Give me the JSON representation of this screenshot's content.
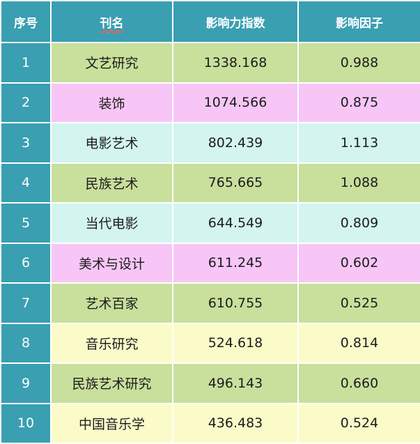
{
  "headers": {
    "index": "序号",
    "name": "刊名",
    "impact_index": "影响力指数",
    "impact_factor": "影响因子"
  },
  "colors": {
    "header_bg": "#3a9fb1",
    "green": "#c9df9c",
    "pink": "#f7c6f7",
    "mint": "#d3f4ef",
    "yellow": "#fbfbc9"
  },
  "rows": [
    {
      "index": "1",
      "name": "文艺研究",
      "impact_index": "1338.168",
      "impact_factor": "0.988",
      "color": "#c9df9c"
    },
    {
      "index": "2",
      "name": "装饰",
      "impact_index": "1074.566",
      "impact_factor": "0.875",
      "color": "#f7c6f7"
    },
    {
      "index": "3",
      "name": "电影艺术",
      "impact_index": "802.439",
      "impact_factor": "1.113",
      "color": "#d3f4ef"
    },
    {
      "index": "4",
      "name": "民族艺术",
      "impact_index": "765.665",
      "impact_factor": "1.088",
      "color": "#c9df9c"
    },
    {
      "index": "5",
      "name": "当代电影",
      "impact_index": "644.549",
      "impact_factor": "0.809",
      "color": "#d3f4ef"
    },
    {
      "index": "6",
      "name": "美术与设计",
      "impact_index": "611.245",
      "impact_factor": "0.602",
      "color": "#f7c6f7"
    },
    {
      "index": "7",
      "name": "艺术百家",
      "impact_index": "610.755",
      "impact_factor": "0.525",
      "color": "#c9df9c"
    },
    {
      "index": "8",
      "name": "音乐研究",
      "impact_index": "524.618",
      "impact_factor": "0.814",
      "color": "#fbfbc9"
    },
    {
      "index": "9",
      "name": "民族艺术研究",
      "impact_index": "496.143",
      "impact_factor": "0.660",
      "color": "#c9df9c"
    },
    {
      "index": "10",
      "name": "中国音乐学",
      "impact_index": "436.483",
      "impact_factor": "0.524",
      "color": "#fbfbc9"
    }
  ]
}
